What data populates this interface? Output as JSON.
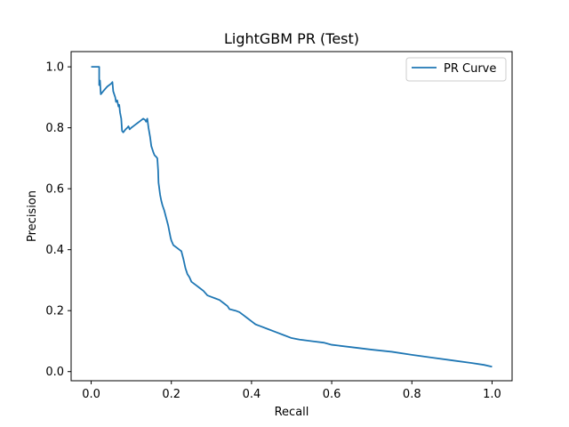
{
  "chart_data": {
    "type": "line",
    "title": "LightGBM PR (Test)",
    "xlabel": "Recall",
    "ylabel": "Precision",
    "xlim": [
      -0.05,
      1.05
    ],
    "ylim": [
      -0.03,
      1.05
    ],
    "xticks": [
      0.0,
      0.2,
      0.4,
      0.6,
      0.8,
      1.0
    ],
    "xtick_labels": [
      "0.0",
      "0.2",
      "0.4",
      "0.6",
      "0.8",
      "1.0"
    ],
    "yticks": [
      0.0,
      0.2,
      0.4,
      0.6,
      0.8,
      1.0
    ],
    "ytick_labels": [
      "0.0",
      "0.2",
      "0.4",
      "0.6",
      "0.8",
      "1.0"
    ],
    "grid": false,
    "legend": {
      "position": "upper-right",
      "entries": [
        "PR Curve"
      ]
    },
    "colors": {
      "series": "#1f77b4"
    },
    "series": [
      {
        "name": "PR Curve",
        "points": [
          [
            0.0,
            1.0
          ],
          [
            0.02,
            1.0
          ],
          [
            0.02,
            0.94
          ],
          [
            0.022,
            0.955
          ],
          [
            0.024,
            0.91
          ],
          [
            0.03,
            0.92
          ],
          [
            0.04,
            0.935
          ],
          [
            0.05,
            0.945
          ],
          [
            0.053,
            0.95
          ],
          [
            0.055,
            0.92
          ],
          [
            0.06,
            0.9
          ],
          [
            0.062,
            0.885
          ],
          [
            0.065,
            0.89
          ],
          [
            0.068,
            0.87
          ],
          [
            0.07,
            0.875
          ],
          [
            0.072,
            0.85
          ],
          [
            0.075,
            0.83
          ],
          [
            0.077,
            0.79
          ],
          [
            0.08,
            0.785
          ],
          [
            0.083,
            0.79
          ],
          [
            0.086,
            0.795
          ],
          [
            0.09,
            0.8
          ],
          [
            0.093,
            0.805
          ],
          [
            0.096,
            0.795
          ],
          [
            0.1,
            0.8
          ],
          [
            0.105,
            0.805
          ],
          [
            0.11,
            0.81
          ],
          [
            0.115,
            0.815
          ],
          [
            0.12,
            0.82
          ],
          [
            0.125,
            0.825
          ],
          [
            0.13,
            0.83
          ],
          [
            0.135,
            0.825
          ],
          [
            0.137,
            0.82
          ],
          [
            0.14,
            0.83
          ],
          [
            0.143,
            0.8
          ],
          [
            0.147,
            0.77
          ],
          [
            0.15,
            0.74
          ],
          [
            0.155,
            0.72
          ],
          [
            0.158,
            0.71
          ],
          [
            0.162,
            0.705
          ],
          [
            0.165,
            0.7
          ],
          [
            0.167,
            0.66
          ],
          [
            0.168,
            0.62
          ],
          [
            0.172,
            0.58
          ],
          [
            0.175,
            0.56
          ],
          [
            0.178,
            0.545
          ],
          [
            0.182,
            0.53
          ],
          [
            0.185,
            0.515
          ],
          [
            0.188,
            0.5
          ],
          [
            0.192,
            0.48
          ],
          [
            0.195,
            0.46
          ],
          [
            0.198,
            0.44
          ],
          [
            0.2,
            0.43
          ],
          [
            0.205,
            0.415
          ],
          [
            0.21,
            0.41
          ],
          [
            0.215,
            0.405
          ],
          [
            0.22,
            0.4
          ],
          [
            0.225,
            0.395
          ],
          [
            0.23,
            0.37
          ],
          [
            0.235,
            0.34
          ],
          [
            0.24,
            0.32
          ],
          [
            0.245,
            0.31
          ],
          [
            0.25,
            0.295
          ],
          [
            0.26,
            0.285
          ],
          [
            0.27,
            0.275
          ],
          [
            0.28,
            0.265
          ],
          [
            0.29,
            0.25
          ],
          [
            0.3,
            0.245
          ],
          [
            0.31,
            0.24
          ],
          [
            0.32,
            0.235
          ],
          [
            0.33,
            0.225
          ],
          [
            0.34,
            0.215
          ],
          [
            0.345,
            0.205
          ],
          [
            0.36,
            0.2
          ],
          [
            0.37,
            0.195
          ],
          [
            0.38,
            0.185
          ],
          [
            0.39,
            0.175
          ],
          [
            0.4,
            0.165
          ],
          [
            0.41,
            0.155
          ],
          [
            0.42,
            0.15
          ],
          [
            0.44,
            0.14
          ],
          [
            0.46,
            0.13
          ],
          [
            0.48,
            0.12
          ],
          [
            0.5,
            0.11
          ],
          [
            0.52,
            0.105
          ],
          [
            0.55,
            0.1
          ],
          [
            0.58,
            0.095
          ],
          [
            0.6,
            0.088
          ],
          [
            0.65,
            0.08
          ],
          [
            0.7,
            0.072
          ],
          [
            0.75,
            0.065
          ],
          [
            0.8,
            0.055
          ],
          [
            0.85,
            0.046
          ],
          [
            0.9,
            0.037
          ],
          [
            0.95,
            0.028
          ],
          [
            0.98,
            0.022
          ],
          [
            1.0,
            0.016
          ]
        ]
      }
    ]
  }
}
